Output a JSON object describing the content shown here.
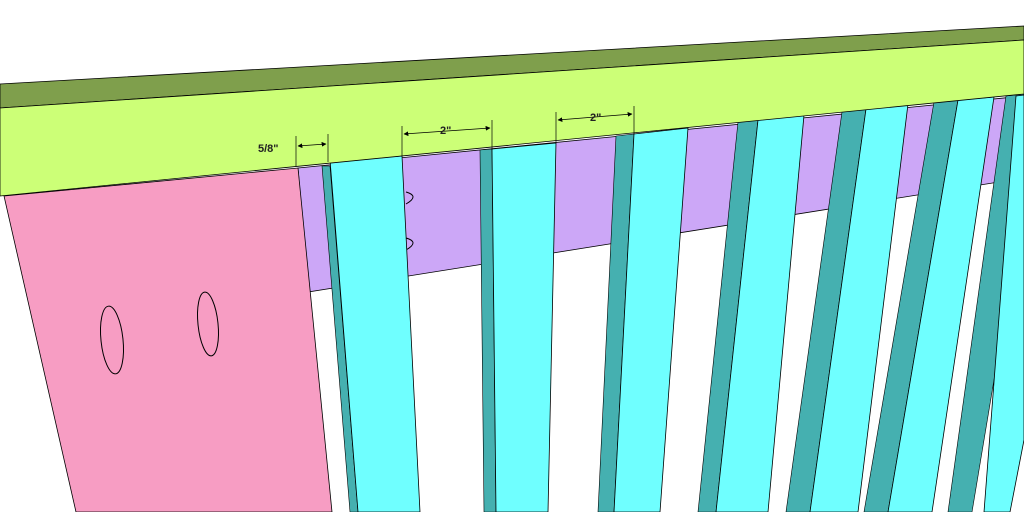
{
  "colors": {
    "background": "#ffffff",
    "rail_face": "#ccff77",
    "rail_top": "#7f9f4c",
    "apron_face": "#cca7f7",
    "leg_face": "#f79dc3",
    "slat_face": "#6fffff",
    "slat_side": "#45b0b0",
    "outline": "#000000"
  },
  "icons": {
    "pocket_hole": "pocket-hole-icon",
    "dimension_arrow": "dimension-arrow-icon"
  },
  "dimensions": {
    "edge_gap": "5/8\"",
    "slat_gap_1": "2\"",
    "slat_gap_2": "2\""
  }
}
